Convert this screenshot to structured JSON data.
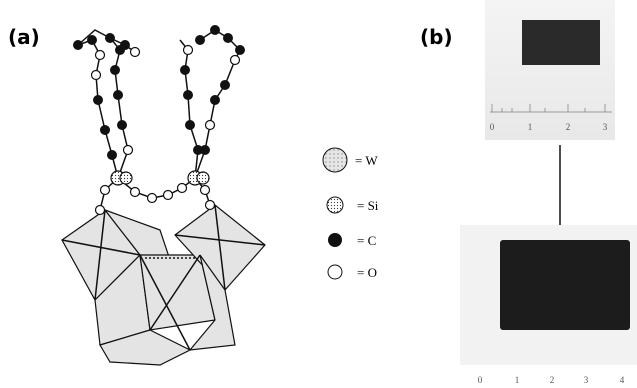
{
  "panel_a": {
    "label": "(a)",
    "legend": [
      {
        "label": "= W"
      },
      {
        "label": "= Si"
      },
      {
        "label": "= C"
      },
      {
        "label": "= O"
      }
    ]
  },
  "panel_b": {
    "label": "(b)",
    "top_ruler": [
      "0",
      "1",
      "2",
      "3"
    ],
    "bottom_ruler": [
      "0",
      "1",
      "2",
      "3",
      "4"
    ]
  }
}
